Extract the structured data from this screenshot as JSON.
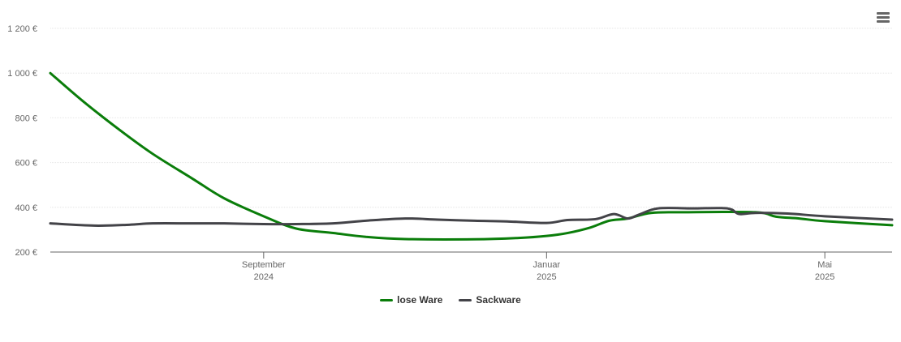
{
  "colors": {
    "lose_ware": "#0a7d0a",
    "sackware": "#434348",
    "grid": "#e6e6e6",
    "axis": "#666666"
  },
  "menu": {
    "icon": "hamburger-menu-icon"
  },
  "chart_data": {
    "type": "line",
    "grid": true,
    "legend_placement": "bottom-center",
    "ylim": [
      200,
      1200
    ],
    "y_ticks": [
      {
        "value": 200,
        "label": "200 €"
      },
      {
        "value": 400,
        "label": "400 €"
      },
      {
        "value": 600,
        "label": "600 €"
      },
      {
        "value": 800,
        "label": "800 €"
      },
      {
        "value": 1000,
        "label": "1 000 €"
      },
      {
        "value": 1200,
        "label": "1 200 €"
      }
    ],
    "xlim": [
      "2024-06-01",
      "2025-05-30"
    ],
    "x_ticks": [
      {
        "date": "2024-09-01",
        "month": "September",
        "year": "2024"
      },
      {
        "date": "2025-01-01",
        "month": "Januar",
        "year": "2025"
      },
      {
        "date": "2025-05-01",
        "month": "Mai",
        "year": "2025"
      }
    ],
    "series": [
      {
        "name": "lose Ware",
        "color": "#0a7d0a",
        "points": [
          [
            "2024-06-01",
            1000
          ],
          [
            "2024-06-15",
            875
          ],
          [
            "2024-07-01",
            745
          ],
          [
            "2024-07-15",
            640
          ],
          [
            "2024-08-01",
            530
          ],
          [
            "2024-08-15",
            440
          ],
          [
            "2024-09-01",
            360
          ],
          [
            "2024-09-15",
            305
          ],
          [
            "2024-10-01",
            285
          ],
          [
            "2024-10-15",
            268
          ],
          [
            "2024-11-01",
            258
          ],
          [
            "2024-12-01",
            257
          ],
          [
            "2024-12-20",
            263
          ],
          [
            "2025-01-01",
            272
          ],
          [
            "2025-01-10",
            285
          ],
          [
            "2025-01-20",
            310
          ],
          [
            "2025-01-28",
            340
          ],
          [
            "2025-02-05",
            350
          ],
          [
            "2025-02-15",
            375
          ],
          [
            "2025-03-01",
            378
          ],
          [
            "2025-04-01",
            378
          ],
          [
            "2025-04-10",
            358
          ],
          [
            "2025-04-20",
            350
          ],
          [
            "2025-05-01",
            338
          ],
          [
            "2025-05-30",
            320
          ]
        ]
      },
      {
        "name": "Sackware",
        "color": "#434348",
        "points": [
          [
            "2024-06-01",
            328
          ],
          [
            "2024-06-20",
            318
          ],
          [
            "2024-07-05",
            322
          ],
          [
            "2024-07-15",
            328
          ],
          [
            "2024-08-01",
            328
          ],
          [
            "2024-08-15",
            328
          ],
          [
            "2024-09-01",
            325
          ],
          [
            "2024-09-15",
            325
          ],
          [
            "2024-10-01",
            328
          ],
          [
            "2024-10-15",
            340
          ],
          [
            "2024-11-01",
            350
          ],
          [
            "2024-11-15",
            345
          ],
          [
            "2024-12-01",
            340
          ],
          [
            "2024-12-15",
            337
          ],
          [
            "2025-01-01",
            330
          ],
          [
            "2025-01-10",
            343
          ],
          [
            "2025-01-22",
            347
          ],
          [
            "2025-01-30",
            370
          ],
          [
            "2025-02-05",
            350
          ],
          [
            "2025-02-10",
            368
          ],
          [
            "2025-02-18",
            395
          ],
          [
            "2025-03-05",
            395
          ],
          [
            "2025-03-20",
            395
          ],
          [
            "2025-03-25",
            370
          ],
          [
            "2025-04-01",
            375
          ],
          [
            "2025-04-15",
            372
          ],
          [
            "2025-05-01",
            360
          ],
          [
            "2025-05-30",
            345
          ]
        ]
      }
    ]
  }
}
